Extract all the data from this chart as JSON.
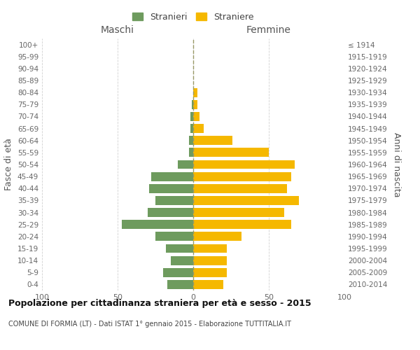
{
  "age_groups": [
    "0-4",
    "5-9",
    "10-14",
    "15-19",
    "20-24",
    "25-29",
    "30-34",
    "35-39",
    "40-44",
    "45-49",
    "50-54",
    "55-59",
    "60-64",
    "65-69",
    "70-74",
    "75-79",
    "80-84",
    "85-89",
    "90-94",
    "95-99",
    "100+"
  ],
  "birth_years": [
    "2010-2014",
    "2005-2009",
    "2000-2004",
    "1995-1999",
    "1990-1994",
    "1985-1989",
    "1980-1984",
    "1975-1979",
    "1970-1974",
    "1965-1969",
    "1960-1964",
    "1955-1959",
    "1950-1954",
    "1945-1949",
    "1940-1944",
    "1935-1939",
    "1930-1934",
    "1925-1929",
    "1920-1924",
    "1915-1919",
    "≤ 1914"
  ],
  "maschi": [
    17,
    20,
    15,
    18,
    25,
    47,
    30,
    25,
    29,
    28,
    10,
    3,
    3,
    2,
    2,
    1,
    0,
    0,
    0,
    0,
    0
  ],
  "femmine": [
    20,
    22,
    22,
    22,
    32,
    65,
    60,
    70,
    62,
    65,
    67,
    50,
    26,
    7,
    4,
    3,
    3,
    0,
    0,
    0,
    0
  ],
  "maschi_color": "#6e9b5e",
  "femmine_color": "#f5b800",
  "title": "Popolazione per cittadinanza straniera per età e sesso - 2015",
  "subtitle": "COMUNE DI FORMIA (LT) - Dati ISTAT 1° gennaio 2015 - Elaborazione TUTTITALIA.IT",
  "xlabel_left": "Maschi",
  "xlabel_right": "Femmine",
  "ylabel_left": "Fasce di età",
  "ylabel_right": "Anni di nascita",
  "legend_stranieri": "Stranieri",
  "legend_straniere": "Straniere",
  "xlim": 100,
  "background_color": "#ffffff",
  "grid_color": "#cccccc",
  "bar_height": 0.75,
  "dashed_line_color": "#999966"
}
